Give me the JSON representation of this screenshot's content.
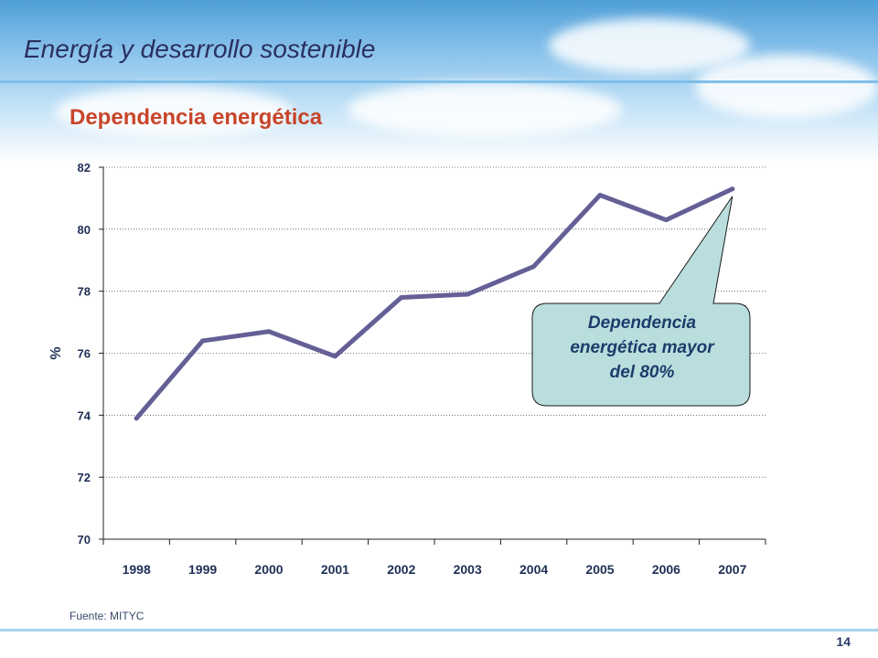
{
  "header": {
    "title": "Energía y desarrollo sostenible"
  },
  "chart_data": {
    "type": "line",
    "title": "Dependencia energética",
    "ylabel": "%",
    "xlabel": "",
    "x": [
      "1998",
      "1999",
      "2000",
      "2001",
      "2002",
      "2003",
      "2004",
      "2005",
      "2006",
      "2007"
    ],
    "series": [
      {
        "values": [
          73.9,
          76.4,
          76.7,
          75.9,
          77.8,
          77.9,
          78.8,
          81.1,
          80.3,
          81.3
        ]
      }
    ],
    "ylim": [
      70,
      82
    ],
    "yticks": [
      70,
      72,
      74,
      76,
      78,
      80,
      82
    ],
    "grid": "horizontal dashed",
    "line_color": "#646096",
    "callout": {
      "text_lines": [
        "Dependencia",
        "energética mayor",
        "del 80%"
      ],
      "fill": "#b9dedd"
    }
  },
  "source": "Fuente: MITYC",
  "page_number": "14"
}
